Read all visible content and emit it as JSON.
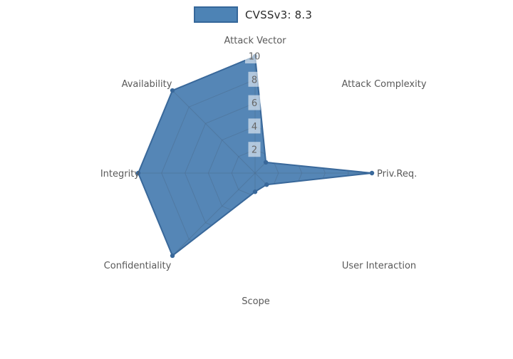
{
  "legend": {
    "label": "CVSSv3: 8.3",
    "swatch_fill": "#4d83b5",
    "swatch_border": "#35679a"
  },
  "chart_data": {
    "type": "radar",
    "title": "CVSSv3: 8.3",
    "range": [
      0,
      10
    ],
    "ticks": [
      2,
      4,
      6,
      8,
      10
    ],
    "grid": true,
    "legend_position": "top-center",
    "axes": [
      {
        "label": "Attack Vector",
        "value": 10
      },
      {
        "label": "Attack Complexity",
        "value": 1.3
      },
      {
        "label": "Priv.Req.",
        "value": 10
      },
      {
        "label": "User Interaction",
        "value": 1.4
      },
      {
        "label": "Scope",
        "value": 1.6
      },
      {
        "label": "Confidentiality",
        "value": 10
      },
      {
        "label": "Integrity",
        "value": 10
      },
      {
        "label": "Availability",
        "value": 10
      }
    ],
    "colors": {
      "fill": "#5586b6",
      "stroke": "#39689a",
      "grid_line": "#4c6f92",
      "marker": "#39689a",
      "axis_label_text": "#595959",
      "tick_text": "#666666",
      "tick_box": "rgba(255,255,255,0.55)",
      "legend_text": "#2b2b2b"
    }
  }
}
